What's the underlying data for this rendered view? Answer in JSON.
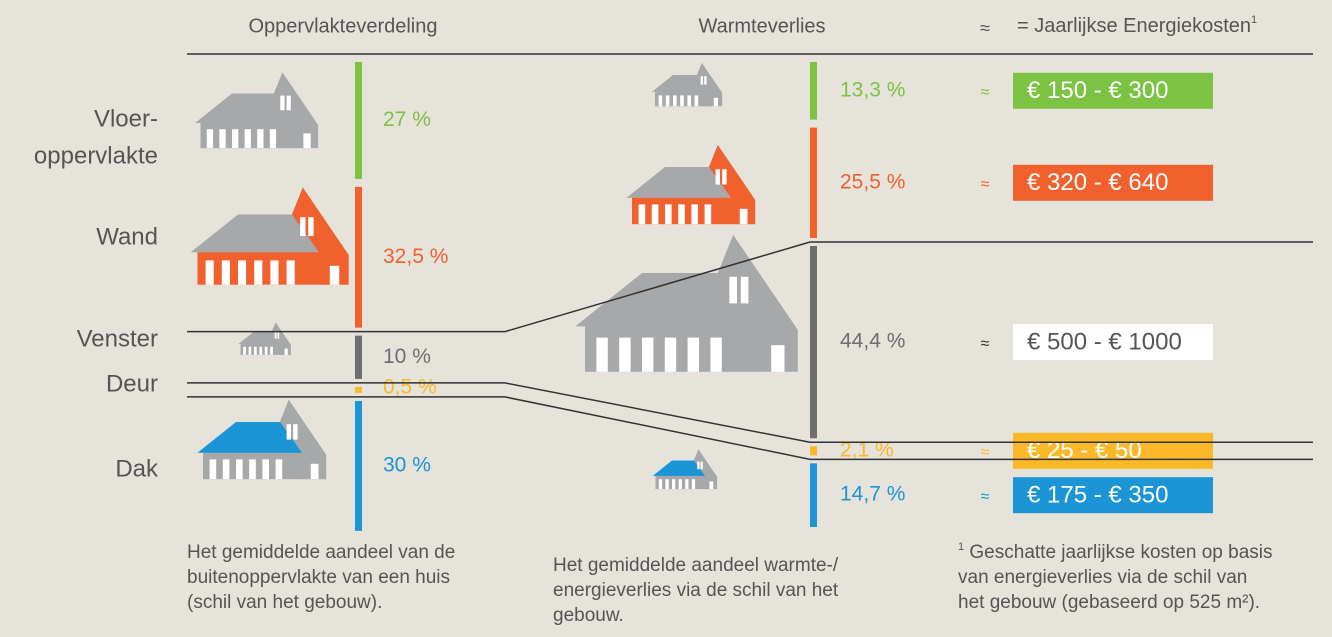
{
  "header": {
    "surface_title": "Oppervlakteverdeling",
    "loss_title": "Warmteverlies",
    "approx": "≈",
    "cost_title": "= Jaarlijkse Energiekosten",
    "cost_note": "1"
  },
  "parts": [
    {
      "label_lines": [
        "Vloer-",
        "oppervlakte"
      ],
      "color": "#7cc243",
      "surface": 27,
      "surface_label": "27 %",
      "loss": 13.3,
      "loss_label": "13,3 %",
      "cost": "€ 150 - € 300",
      "box_color": "#7cc243",
      "box_text": "#ffffff"
    },
    {
      "label_lines": [
        "Wand"
      ],
      "color": "#f0612e",
      "surface": 32.5,
      "surface_label": "32,5 %",
      "loss": 25.5,
      "loss_label": "25,5 %",
      "cost": "€ 320 - € 640",
      "box_color": "#f0612e",
      "box_text": "#ffffff"
    },
    {
      "label_lines": [
        "Venster"
      ],
      "color": "#6d6e70",
      "surface": 10,
      "surface_label": "10 %",
      "loss": 44.4,
      "loss_label": "44,4 %",
      "cost": "€ 500 - € 1000",
      "box_color": "#ffffff",
      "box_text": "#555555"
    },
    {
      "label_lines": [
        "Deur"
      ],
      "color": "#fbb829",
      "surface": 0.5,
      "surface_label": "0,5 %",
      "loss": 2.1,
      "loss_label": "2,1 %",
      "cost": "€ 25 - € 50",
      "box_color": "#fbb829",
      "box_text": "#ffffff"
    },
    {
      "label_lines": [
        "Dak"
      ],
      "color": "#1b95d6",
      "surface": 30,
      "surface_label": "30 %",
      "loss": 14.7,
      "loss_label": "14,7 %",
      "cost": "€ 175 - € 350",
      "box_color": "#1b95d6",
      "box_text": "#ffffff"
    }
  ],
  "footer": {
    "surface_note": [
      "Het gemiddelde aandeel van de",
      "buitenoppervlakte van een huis",
      "(schil van het gebouw)."
    ],
    "loss_note": [
      "Het gemiddelde aandeel warmte-/",
      "energieverlies via de schil van het",
      "gebouw."
    ],
    "cost_note_mark": "1",
    "cost_note": [
      " Geschatte jaarlijkse kosten op basis",
      "van energieverlies via de schil van",
      "het gebouw (gebaseerd op 525 m²)."
    ]
  }
}
